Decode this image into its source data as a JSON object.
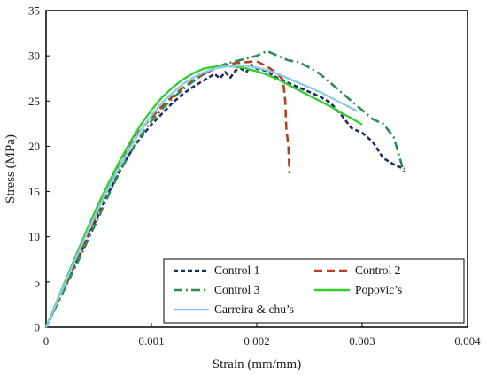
{
  "chart_data": {
    "type": "line",
    "title": "",
    "xlabel": "Strain (mm/mm)",
    "ylabel": "Stress (MPa)",
    "xlim": [
      0,
      0.004
    ],
    "ylim": [
      0,
      35
    ],
    "x_ticks": [
      "0",
      "0.001",
      "0.002",
      "0.003",
      "0.004"
    ],
    "y_ticks": [
      "0",
      "5",
      "10",
      "15",
      "20",
      "25",
      "30",
      "35"
    ],
    "grid": false,
    "legend_position": "bottom-right",
    "series": [
      {
        "name": "Control 1",
        "color": "#1f2d5c",
        "dash": "short-dash",
        "x": [
          0,
          0.0001,
          0.0002,
          0.0003,
          0.0004,
          0.0005,
          0.0006,
          0.0007,
          0.0008,
          0.0009,
          0.001,
          0.0011,
          0.0012,
          0.0013,
          0.0014,
          0.0015,
          0.0016,
          0.00165,
          0.0017,
          0.00175,
          0.0018,
          0.00185,
          0.0019,
          0.00195,
          0.002,
          0.0021,
          0.0022,
          0.0023,
          0.0024,
          0.0025,
          0.0026,
          0.0027,
          0.0028,
          0.0029,
          0.003,
          0.0031,
          0.0032,
          0.0033,
          0.0034
        ],
        "y": [
          0,
          2.5,
          5,
          7.5,
          10,
          12.5,
          15,
          17.3,
          19.3,
          21,
          22.4,
          23.6,
          24.8,
          25.8,
          26.6,
          27.3,
          28,
          27.5,
          28.2,
          27.6,
          28.4,
          28.6,
          28.2,
          29,
          28.6,
          28.3,
          27.5,
          27,
          26.5,
          26,
          25.5,
          24.8,
          23.5,
          22,
          21.5,
          20.5,
          18.7,
          18,
          17.5
        ]
      },
      {
        "name": "Control 2",
        "color": "#b5401f",
        "dash": "long-dash",
        "x": [
          0,
          0.0001,
          0.0002,
          0.0003,
          0.0004,
          0.0005,
          0.0006,
          0.0007,
          0.0008,
          0.0009,
          0.001,
          0.0011,
          0.0012,
          0.0013,
          0.0014,
          0.0015,
          0.0016,
          0.0017,
          0.0018,
          0.0019,
          0.002,
          0.0021,
          0.0022,
          0.00225,
          0.00227,
          0.00228,
          0.0023,
          0.00231
        ],
        "y": [
          0,
          2.6,
          5.2,
          7.8,
          10.4,
          13,
          15.6,
          18,
          20.1,
          21.9,
          23.2,
          24.4,
          25.5,
          26.5,
          27.3,
          28,
          28.6,
          29,
          29.2,
          29.3,
          29.4,
          28.8,
          28,
          27.3,
          25,
          22,
          20,
          17
        ]
      },
      {
        "name": "Control 3",
        "color": "#2e8b57",
        "dash": "dash-dot",
        "x": [
          0,
          0.0001,
          0.0002,
          0.0003,
          0.0004,
          0.0005,
          0.0006,
          0.0007,
          0.0008,
          0.0009,
          0.001,
          0.0011,
          0.0012,
          0.0013,
          0.0014,
          0.0015,
          0.0016,
          0.0017,
          0.0018,
          0.0019,
          0.002,
          0.00205,
          0.0021,
          0.0022,
          0.0023,
          0.0024,
          0.0025,
          0.0026,
          0.0027,
          0.0028,
          0.0029,
          0.003,
          0.0031,
          0.0032,
          0.0033,
          0.0034
        ],
        "y": [
          0,
          2.4,
          4.8,
          7.2,
          9.7,
          12.2,
          14.8,
          17.2,
          19.3,
          21.2,
          22.8,
          24.1,
          25.3,
          26.3,
          27.2,
          28,
          28.6,
          29.1,
          29.4,
          29.7,
          30,
          30.3,
          30.5,
          30,
          29.5,
          29.3,
          28.7,
          28,
          27,
          26,
          25,
          24,
          23,
          22.5,
          21,
          17
        ]
      },
      {
        "name": "Popovic’s",
        "color": "#33cc33",
        "dash": "solid",
        "x": [
          0,
          0.0001,
          0.0002,
          0.0003,
          0.0004,
          0.0005,
          0.0006,
          0.0007,
          0.0008,
          0.0009,
          0.001,
          0.0011,
          0.0012,
          0.0013,
          0.0014,
          0.0015,
          0.0016,
          0.0017,
          0.0018,
          0.0019,
          0.002,
          0.0021,
          0.0022,
          0.0023,
          0.0024,
          0.0025,
          0.0026,
          0.0027,
          0.0028,
          0.0029,
          0.003
        ],
        "y": [
          0,
          2.8,
          5.6,
          8.4,
          11.1,
          13.7,
          16.1,
          18.4,
          20.5,
          22.4,
          24,
          25.4,
          26.5,
          27.4,
          28.1,
          28.6,
          28.8,
          28.9,
          28.8,
          28.6,
          28.3,
          27.9,
          27.4,
          26.8,
          26.2,
          25.6,
          25,
          24.4,
          23.7,
          23.1,
          22.4
        ]
      },
      {
        "name": "Carreira & chu’s",
        "color": "#8ecae6",
        "dash": "solid",
        "x": [
          0,
          0.0001,
          0.0002,
          0.0003,
          0.0004,
          0.0005,
          0.0006,
          0.0007,
          0.0008,
          0.0009,
          0.001,
          0.0011,
          0.0012,
          0.0013,
          0.0014,
          0.0015,
          0.0016,
          0.0017,
          0.0018,
          0.0019,
          0.002,
          0.0021,
          0.0022,
          0.0023,
          0.0024,
          0.0025,
          0.0026,
          0.0027,
          0.0028,
          0.0029,
          0.00295
        ],
        "y": [
          0,
          2.7,
          5.4,
          8.1,
          10.7,
          13.2,
          15.6,
          17.8,
          19.9,
          21.8,
          23.4,
          24.8,
          25.9,
          26.9,
          27.6,
          28.2,
          28.6,
          28.8,
          28.9,
          28.9,
          28.7,
          28.4,
          28,
          27.5,
          27,
          26.5,
          26,
          25.4,
          24.8,
          24.2,
          23.9
        ]
      }
    ]
  }
}
